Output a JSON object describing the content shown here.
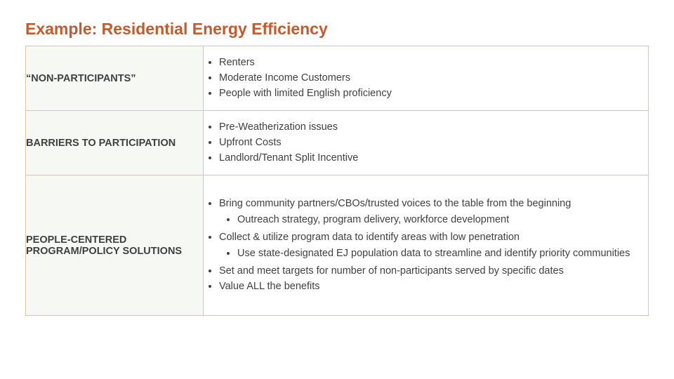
{
  "title": "Example: Residential Energy Efficiency",
  "watermark": "TITLE",
  "colors": {
    "title": "#c55a2c",
    "border": "#d4c9a8",
    "label_bg": "#f5f8f3",
    "text": "#404040",
    "page_bg": "#ffffff"
  },
  "rows": [
    {
      "label": "“NON-PARTICIPANTS”",
      "bullets": [
        {
          "text": "Renters"
        },
        {
          "text": "Moderate Income Customers"
        },
        {
          "text": "People with limited English proficiency"
        }
      ]
    },
    {
      "label": "BARRIERS TO PARTICIPATION",
      "bullets": [
        {
          "text": "Pre-Weatherization issues"
        },
        {
          "text": "Upfront Costs"
        },
        {
          "text": "Landlord/Tenant Split Incentive"
        }
      ]
    },
    {
      "label": "PEOPLE-CENTERED PROGRAM/POLICY SOLUTIONS",
      "bullets": [
        {
          "text": "Bring community partners/CBOs/trusted voices to the table from the beginning",
          "sub": [
            "Outreach strategy, program delivery, workforce development"
          ]
        },
        {
          "text": "Collect & utilize program data to identify areas with low penetration",
          "sub": [
            "Use state-designated EJ population data to streamline and identify priority communities"
          ]
        },
        {
          "text": "Set and meet targets for number of non-participants served by specific dates"
        },
        {
          "text": "Value ALL the benefits"
        }
      ]
    }
  ]
}
